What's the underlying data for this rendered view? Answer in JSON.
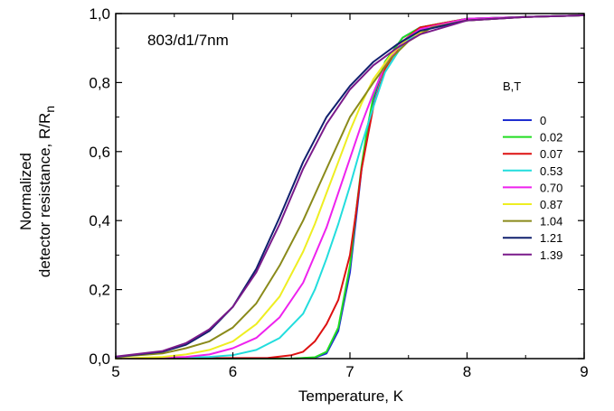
{
  "chart_data": {
    "type": "line",
    "title": "",
    "annotation": "803/d1/7nm",
    "xlabel": "Temperature, K",
    "ylabel_line1": "Normalized",
    "ylabel_line2_prefix": "detector resistance, R/R",
    "ylabel_subscript": "n",
    "xlim": [
      5,
      9
    ],
    "ylim": [
      0,
      1.0
    ],
    "x_ticks": [
      {
        "value": 5,
        "label": "5"
      },
      {
        "value": 6,
        "label": "6"
      },
      {
        "value": 7,
        "label": "7"
      },
      {
        "value": 8,
        "label": "8"
      },
      {
        "value": 9,
        "label": "9"
      }
    ],
    "y_ticks": [
      {
        "value": 0.0,
        "label": "0,0"
      },
      {
        "value": 0.2,
        "label": "0,2"
      },
      {
        "value": 0.4,
        "label": "0,4"
      },
      {
        "value": 0.6,
        "label": "0,6"
      },
      {
        "value": 0.8,
        "label": "0,8"
      },
      {
        "value": 1.0,
        "label": "1,0"
      }
    ],
    "grid": false,
    "legend_title": "B,T",
    "legend_position": "right",
    "series": [
      {
        "name": "0",
        "color": "#1f2fd0",
        "x": [
          5.0,
          6.5,
          6.7,
          6.8,
          6.9,
          7.0,
          7.05,
          7.1,
          7.15,
          7.2,
          7.3,
          7.45,
          7.6,
          8.0,
          8.5,
          9.0
        ],
        "y": [
          0.0,
          0.0,
          0.003,
          0.015,
          0.08,
          0.25,
          0.4,
          0.55,
          0.66,
          0.75,
          0.86,
          0.93,
          0.96,
          0.985,
          0.99,
          0.995
        ]
      },
      {
        "name": "0.02",
        "color": "#22dd22",
        "x": [
          5.0,
          6.5,
          6.7,
          6.8,
          6.9,
          7.0,
          7.05,
          7.1,
          7.15,
          7.2,
          7.3,
          7.45,
          7.6,
          8.0,
          8.5,
          9.0
        ],
        "y": [
          0.0,
          0.0,
          0.004,
          0.02,
          0.09,
          0.27,
          0.42,
          0.56,
          0.67,
          0.76,
          0.86,
          0.93,
          0.96,
          0.985,
          0.99,
          0.995
        ]
      },
      {
        "name": "0.07",
        "color": "#dd1111",
        "x": [
          5.0,
          6.3,
          6.5,
          6.6,
          6.7,
          6.8,
          6.9,
          7.0,
          7.05,
          7.1,
          7.2,
          7.3,
          7.45,
          7.6,
          8.0,
          8.5,
          9.0
        ],
        "y": [
          0.0,
          0.002,
          0.01,
          0.02,
          0.05,
          0.1,
          0.17,
          0.3,
          0.42,
          0.55,
          0.73,
          0.84,
          0.92,
          0.96,
          0.985,
          0.99,
          0.995
        ]
      },
      {
        "name": "0.53",
        "color": "#22dddd",
        "x": [
          5.0,
          5.8,
          6.0,
          6.2,
          6.4,
          6.6,
          6.7,
          6.8,
          6.9,
          7.0,
          7.1,
          7.2,
          7.3,
          7.45,
          7.6,
          8.0,
          8.5,
          9.0
        ],
        "y": [
          0.0,
          0.005,
          0.01,
          0.025,
          0.06,
          0.13,
          0.2,
          0.29,
          0.39,
          0.5,
          0.62,
          0.73,
          0.83,
          0.91,
          0.95,
          0.985,
          0.99,
          0.995
        ]
      },
      {
        "name": "0.70",
        "color": "#ee22ee",
        "x": [
          5.0,
          5.6,
          5.8,
          6.0,
          6.2,
          6.4,
          6.6,
          6.7,
          6.8,
          6.9,
          7.0,
          7.1,
          7.2,
          7.3,
          7.45,
          7.6,
          8.0,
          8.5,
          9.0
        ],
        "y": [
          0.0,
          0.005,
          0.012,
          0.03,
          0.06,
          0.12,
          0.22,
          0.3,
          0.38,
          0.48,
          0.58,
          0.68,
          0.77,
          0.85,
          0.92,
          0.955,
          0.985,
          0.99,
          0.995
        ]
      },
      {
        "name": "0.87",
        "color": "#eeee22",
        "x": [
          5.0,
          5.4,
          5.6,
          5.8,
          6.0,
          6.2,
          6.4,
          6.6,
          6.7,
          6.8,
          6.9,
          7.0,
          7.1,
          7.2,
          7.35,
          7.5,
          7.7,
          8.0,
          8.5,
          9.0
        ],
        "y": [
          0.0,
          0.005,
          0.012,
          0.025,
          0.05,
          0.1,
          0.18,
          0.31,
          0.39,
          0.48,
          0.57,
          0.66,
          0.74,
          0.81,
          0.88,
          0.93,
          0.96,
          0.98,
          0.99,
          0.995
        ]
      },
      {
        "name": "1.04",
        "color": "#8a8a1a",
        "x": [
          5.0,
          5.4,
          5.6,
          5.8,
          6.0,
          6.2,
          6.4,
          6.6,
          6.8,
          7.0,
          7.2,
          7.35,
          7.5,
          7.7,
          8.0,
          8.5,
          9.0
        ],
        "y": [
          0.005,
          0.015,
          0.03,
          0.05,
          0.09,
          0.16,
          0.27,
          0.4,
          0.55,
          0.7,
          0.8,
          0.87,
          0.92,
          0.96,
          0.98,
          0.99,
          0.995
        ]
      },
      {
        "name": "1.21",
        "color": "#10206e",
        "x": [
          5.0,
          5.4,
          5.6,
          5.8,
          6.0,
          6.2,
          6.4,
          6.6,
          6.8,
          7.0,
          7.2,
          7.4,
          7.6,
          8.0,
          8.5,
          9.0
        ],
        "y": [
          0.005,
          0.02,
          0.04,
          0.08,
          0.15,
          0.26,
          0.41,
          0.57,
          0.7,
          0.79,
          0.86,
          0.91,
          0.95,
          0.98,
          0.99,
          0.995
        ]
      },
      {
        "name": "1.39",
        "color": "#7a1a8a",
        "x": [
          5.0,
          5.4,
          5.6,
          5.8,
          6.0,
          6.2,
          6.4,
          6.6,
          6.8,
          7.0,
          7.2,
          7.4,
          7.6,
          8.0,
          8.5,
          9.0
        ],
        "y": [
          0.006,
          0.022,
          0.045,
          0.085,
          0.15,
          0.25,
          0.39,
          0.55,
          0.68,
          0.78,
          0.85,
          0.9,
          0.94,
          0.98,
          0.99,
          0.995
        ]
      }
    ]
  }
}
